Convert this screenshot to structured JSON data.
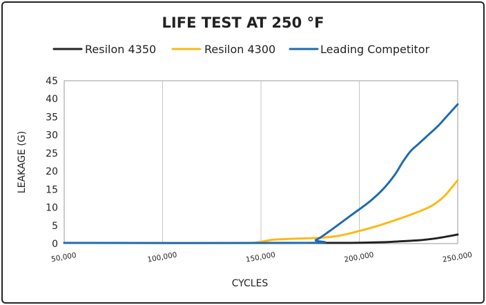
{
  "chart_data": {
    "type": "line",
    "title": "LIFE TEST AT 250 °F",
    "xlabel": "CYCLES",
    "ylabel": "LEAKAGE (G)",
    "xlim": [
      50000,
      250000
    ],
    "ylim": [
      0,
      45
    ],
    "x_ticks": [
      50000,
      100000,
      150000,
      200000,
      250000
    ],
    "x_tick_labels": [
      "50,000",
      "100,000",
      "150,000",
      "200,000",
      "250,000"
    ],
    "y_ticks": [
      0,
      5,
      10,
      15,
      20,
      25,
      30,
      35,
      40,
      45
    ],
    "y_tick_labels": [
      "0",
      "5",
      "10",
      "15",
      "20",
      "25",
      "30",
      "35",
      "40",
      "45"
    ],
    "grid": "vertical",
    "legend_position": "top",
    "series": [
      {
        "name": "Resilon 4350",
        "color": "#222222",
        "x": [
          50000,
          140000,
          180000,
          195000,
          210000,
          220000,
          230000,
          237000,
          243000,
          250000
        ],
        "values": [
          0,
          0,
          0.05,
          0.15,
          0.35,
          0.6,
          0.9,
          1.3,
          1.8,
          2.5
        ]
      },
      {
        "name": "Resilon 4300",
        "color": "#FDB913",
        "x": [
          50000,
          135000,
          145000,
          150000,
          155000,
          160000,
          170000,
          180000,
          190000,
          200000,
          210000,
          220000,
          230000,
          237000,
          243000,
          247000,
          250000
        ],
        "values": [
          0,
          0,
          0.2,
          0.5,
          1.0,
          1.2,
          1.4,
          1.6,
          2.2,
          3.5,
          5.0,
          6.8,
          8.8,
          10.5,
          13.0,
          15.5,
          17.5
        ]
      },
      {
        "name": "Leading Competitor",
        "color": "#1E6BB0",
        "x": [
          50000,
          172000,
          178000,
          185000,
          195000,
          205000,
          212000,
          218000,
          222000,
          226000,
          230000,
          235000,
          240000,
          245000,
          250000
        ],
        "values": [
          0,
          0,
          1,
          3.5,
          7.5,
          11.5,
          15,
          19,
          22.5,
          25.5,
          27.5,
          30,
          32.5,
          35.5,
          38.5
        ]
      }
    ]
  }
}
